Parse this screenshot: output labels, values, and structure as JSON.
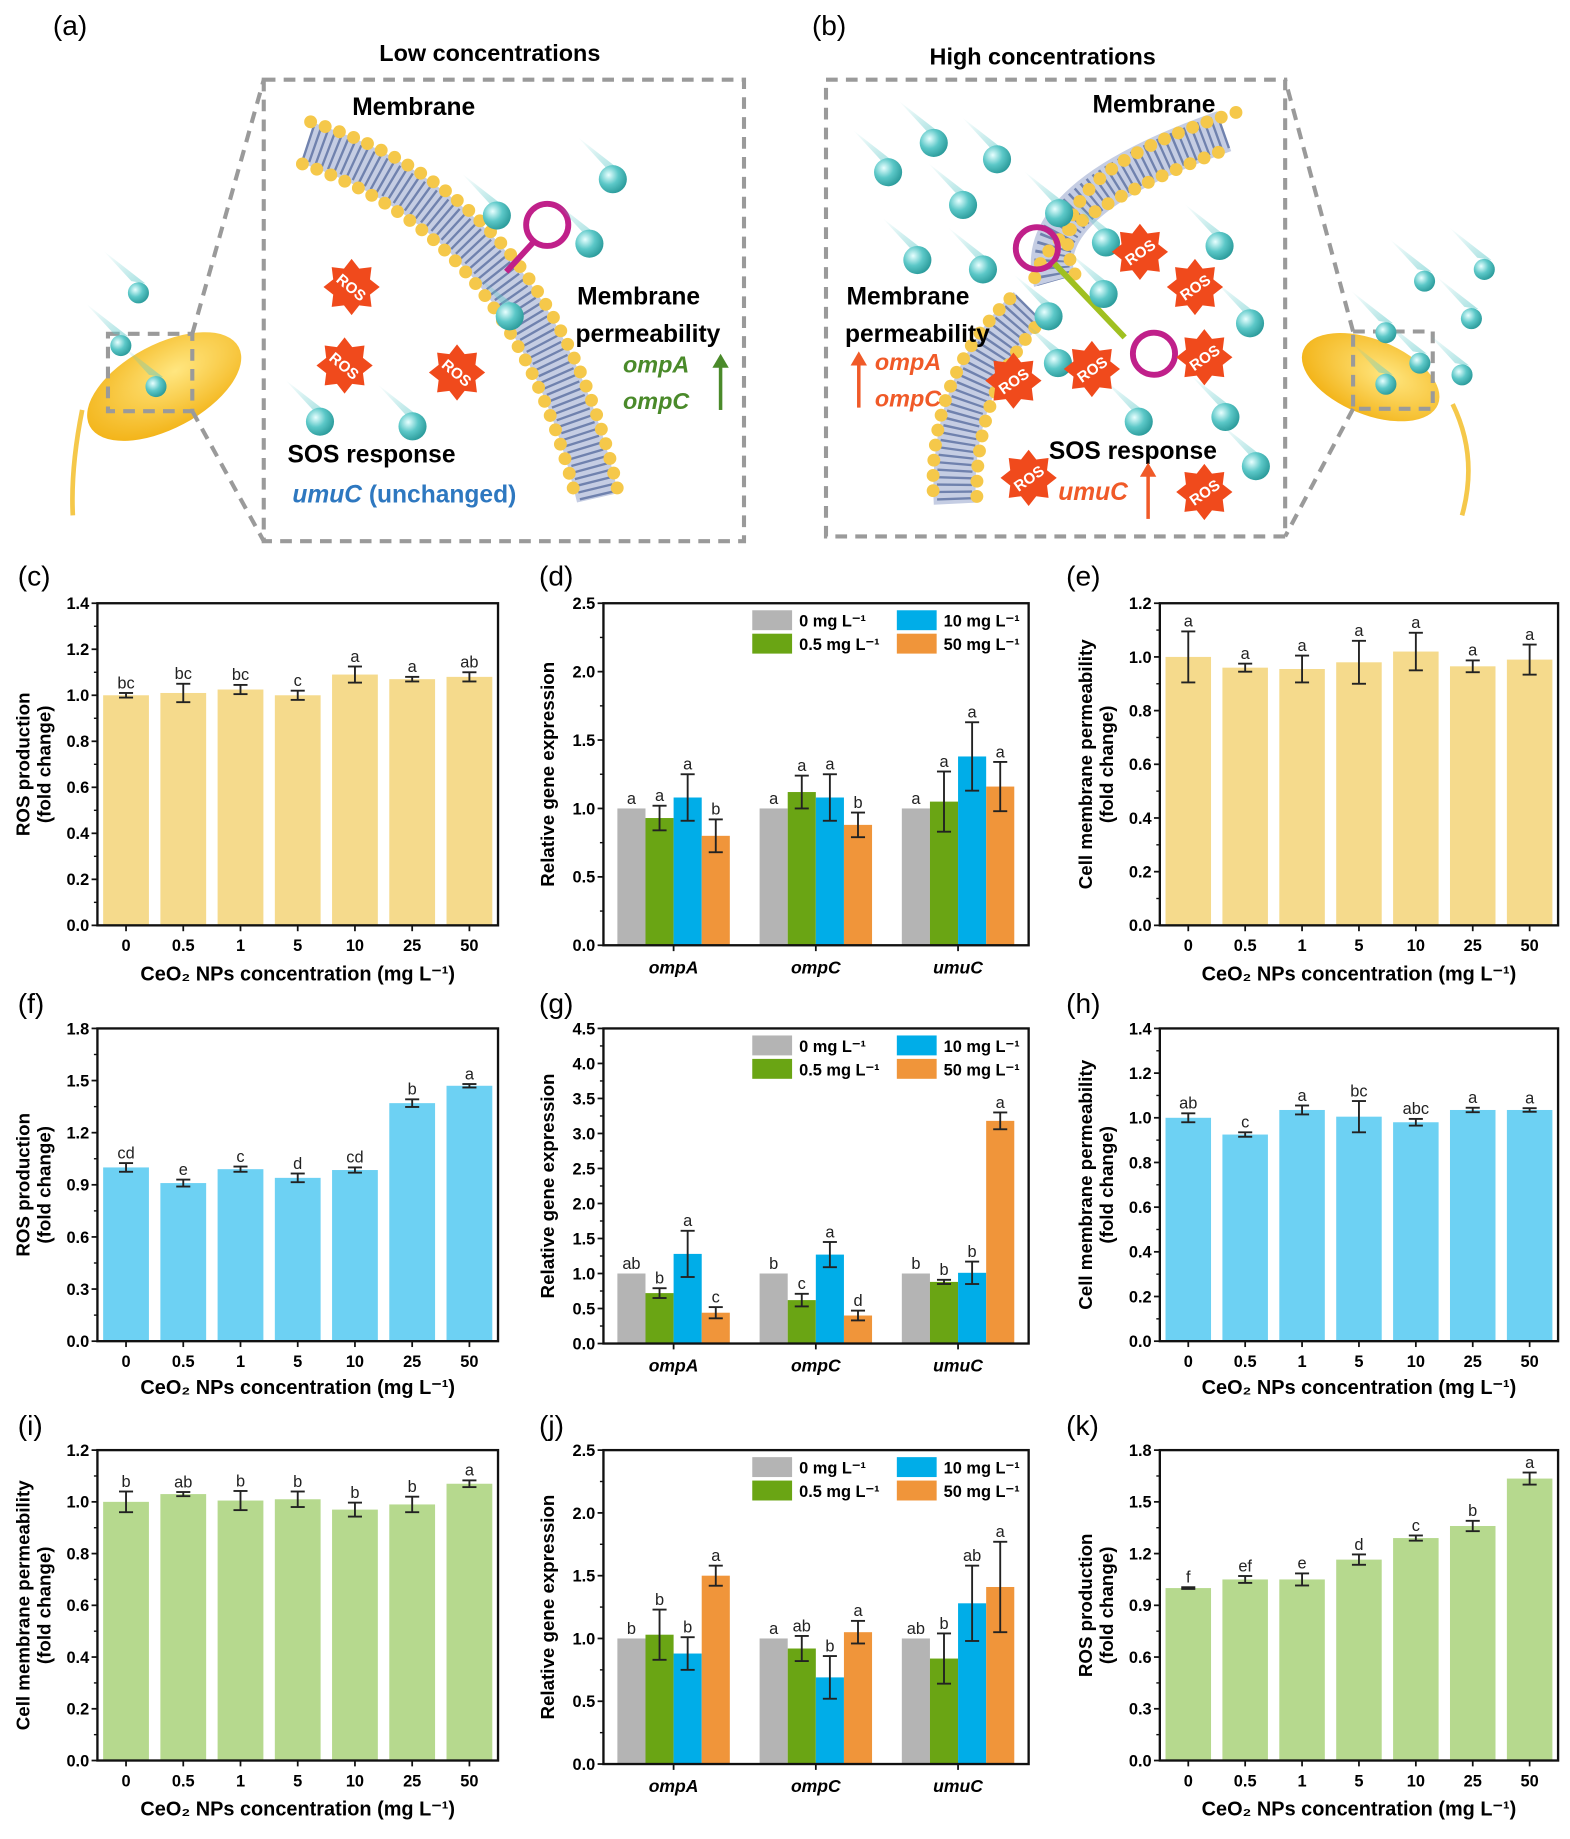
{
  "panel_labels": {
    "a": "(a)",
    "b": "(b)",
    "c": "(c)",
    "d": "(d)",
    "e": "(e)",
    "f": "(f)",
    "g": "(g)",
    "h": "(h)",
    "i": "(i)",
    "j": "(j)",
    "k": "(k)"
  },
  "schematic": {
    "ros_label": "ROS",
    "low": {
      "title": "Low concentrations",
      "membrane": "Membrane",
      "perm_line1": "Membrane",
      "perm_line2": "permeability",
      "gene1": "ompA",
      "gene2": "ompC",
      "sos": "SOS response",
      "umuc": "umuC",
      "umuc_note": "(unchanged)",
      "gene_color": "#4a8a2a",
      "umuc_color": "#2e78c0"
    },
    "high": {
      "title": "High concentrations",
      "membrane": "Membrane",
      "perm_line1": "Membrane",
      "perm_line2": "permeability",
      "gene1": "ompA",
      "gene2": "ompC",
      "sos": "SOS response",
      "umuc": "umuC",
      "gene_color": "#f05a28"
    },
    "colors": {
      "nanoparticle": "#5cc8c8",
      "ros": "#f04a1c",
      "membrane_head": "#f5c84a",
      "membrane_tail": "#5a6fa0",
      "plasmid": "#c0208a",
      "bacterium": "#f5b800"
    }
  },
  "chart_data": [
    {
      "panel": "c",
      "type": "bar",
      "ylabel": [
        "ROS production",
        "(fold change)"
      ],
      "xlabel": "CeO₂ NPs concentration (mg L⁻¹)",
      "ylim": [
        0,
        1.4
      ],
      "ytick_step": 0.2,
      "yticks": [
        "0.0",
        "0.2",
        "0.4",
        "0.6",
        "0.8",
        "1.0",
        "1.2",
        "1.4"
      ],
      "color": "#f5da8c",
      "categories": [
        "0",
        "0.5",
        "1",
        "5",
        "10",
        "25",
        "50"
      ],
      "values": [
        1.0,
        1.01,
        1.025,
        1.0,
        1.09,
        1.07,
        1.08
      ],
      "errors": [
        0.01,
        0.04,
        0.02,
        0.02,
        0.035,
        0.01,
        0.02
      ],
      "letters": [
        "bc",
        "bc",
        "bc",
        "c",
        "a",
        "a",
        "ab"
      ]
    },
    {
      "panel": "d",
      "type": "bar",
      "grouped": true,
      "ylabel": [
        "Relative gene expression"
      ],
      "ylim": [
        0,
        2.5
      ],
      "ytick_step": 0.5,
      "yticks": [
        "0.0",
        "0.5",
        "1.0",
        "1.5",
        "2.0",
        "2.5"
      ],
      "categories": [
        "ompA",
        "ompC",
        "umuC"
      ],
      "series": [
        {
          "name": "0 mg L⁻¹",
          "color": "#b4b4b4",
          "values": [
            1.0,
            1.0,
            1.0
          ],
          "errors": [
            0,
            0,
            0
          ],
          "letters": [
            "a",
            "a",
            "a"
          ]
        },
        {
          "name": "0.5 mg L⁻¹",
          "color": "#6aa514",
          "values": [
            0.93,
            1.12,
            1.05
          ],
          "errors": [
            0.09,
            0.12,
            0.22
          ],
          "letters": [
            "a",
            "a",
            "a"
          ]
        },
        {
          "name": "10 mg L⁻¹",
          "color": "#00ade8",
          "values": [
            1.08,
            1.08,
            1.38
          ],
          "errors": [
            0.17,
            0.17,
            0.25
          ],
          "letters": [
            "a",
            "a",
            "a"
          ]
        },
        {
          "name": "50 mg L⁻¹",
          "color": "#f0953a",
          "values": [
            0.8,
            0.88,
            1.16
          ],
          "errors": [
            0.12,
            0.09,
            0.18
          ],
          "letters": [
            "b",
            "b",
            "a"
          ]
        }
      ]
    },
    {
      "panel": "e",
      "type": "bar",
      "ylabel": [
        "Cell membrane permeability",
        "(fold change)"
      ],
      "xlabel": "CeO₂ NPs concentration (mg L⁻¹)",
      "ylim": [
        0,
        1.2
      ],
      "ytick_step": 0.2,
      "yticks": [
        "0.0",
        "0.2",
        "0.4",
        "0.6",
        "0.8",
        "1.0",
        "1.2"
      ],
      "color": "#f5da8c",
      "categories": [
        "0",
        "0.5",
        "1",
        "5",
        "10",
        "25",
        "50"
      ],
      "values": [
        1.0,
        0.96,
        0.955,
        0.98,
        1.02,
        0.965,
        0.99
      ],
      "errors": [
        0.095,
        0.015,
        0.05,
        0.08,
        0.07,
        0.022,
        0.056
      ],
      "letters": [
        "a",
        "a",
        "a",
        "a",
        "a",
        "a",
        "a"
      ]
    },
    {
      "panel": "f",
      "type": "bar",
      "ylabel": [
        "ROS production",
        "(fold change)"
      ],
      "xlabel": "CeO₂ NPs concentration (mg L⁻¹)",
      "ylim": [
        0,
        1.8
      ],
      "ytick_step": 0.3,
      "yticks": [
        "0.0",
        "0.3",
        "0.6",
        "0.9",
        "1.2",
        "1.5",
        "1.8"
      ],
      "color": "#6dd1f3",
      "categories": [
        "0",
        "0.5",
        "1",
        "5",
        "10",
        "25",
        "50"
      ],
      "values": [
        1.0,
        0.91,
        0.99,
        0.94,
        0.985,
        1.37,
        1.47
      ],
      "errors": [
        0.025,
        0.02,
        0.015,
        0.025,
        0.015,
        0.022,
        0.01
      ],
      "letters": [
        "cd",
        "e",
        "c",
        "d",
        "cd",
        "b",
        "a"
      ]
    },
    {
      "panel": "g",
      "type": "bar",
      "grouped": true,
      "ylabel": [
        "Relative gene expression"
      ],
      "ylim": [
        0,
        4.5
      ],
      "ytick_step": 0.5,
      "yticks": [
        "0.0",
        "0.5",
        "1.0",
        "1.5",
        "2.0",
        "2.5",
        "3.0",
        "3.5",
        "4.0",
        "4.5"
      ],
      "categories": [
        "ompA",
        "ompC",
        "umuC"
      ],
      "series": [
        {
          "name": "0 mg L⁻¹",
          "color": "#b4b4b4",
          "values": [
            1.0,
            1.0,
            1.0
          ],
          "errors": [
            0,
            0,
            0
          ],
          "letters": [
            "ab",
            "b",
            "b"
          ]
        },
        {
          "name": "0.5 mg L⁻¹",
          "color": "#6aa514",
          "values": [
            0.72,
            0.62,
            0.88
          ],
          "errors": [
            0.07,
            0.09,
            0.03
          ],
          "letters": [
            "b",
            "c",
            "b"
          ]
        },
        {
          "name": "10 mg L⁻¹",
          "color": "#00ade8",
          "values": [
            1.28,
            1.27,
            1.01
          ],
          "errors": [
            0.33,
            0.18,
            0.16
          ],
          "letters": [
            "a",
            "a",
            "b"
          ]
        },
        {
          "name": "50 mg L⁻¹",
          "color": "#f0953a",
          "values": [
            0.44,
            0.4,
            3.18
          ],
          "errors": [
            0.08,
            0.07,
            0.12
          ],
          "letters": [
            "c",
            "d",
            "a"
          ]
        }
      ]
    },
    {
      "panel": "h",
      "type": "bar",
      "ylabel": [
        "Cell membrane permeability",
        "(fold change)"
      ],
      "xlabel": "CeO₂ NPs concentration (mg L⁻¹)",
      "ylim": [
        0,
        1.4
      ],
      "ytick_step": 0.2,
      "yticks": [
        "0.0",
        "0.2",
        "0.4",
        "0.6",
        "0.8",
        "1.0",
        "1.2",
        "1.4"
      ],
      "color": "#6dd1f3",
      "categories": [
        "0",
        "0.5",
        "1",
        "5",
        "10",
        "25",
        "50"
      ],
      "values": [
        1.0,
        0.925,
        1.035,
        1.005,
        0.98,
        1.035,
        1.035
      ],
      "errors": [
        0.02,
        0.01,
        0.02,
        0.07,
        0.015,
        0.01,
        0.008
      ],
      "letters": [
        "ab",
        "c",
        "a",
        "bc",
        "abc",
        "a",
        "a"
      ]
    },
    {
      "panel": "i",
      "type": "bar",
      "ylabel": [
        "Cell membrane permeability",
        "(fold change)"
      ],
      "xlabel": "CeO₂ NPs concentration (mg L⁻¹)",
      "ylim": [
        0,
        1.2
      ],
      "ytick_step": 0.2,
      "yticks": [
        "0.0",
        "0.2",
        "0.4",
        "0.6",
        "0.8",
        "1.0",
        "1.2"
      ],
      "color": "#b6d98e",
      "categories": [
        "0",
        "0.5",
        "1",
        "5",
        "10",
        "25",
        "50"
      ],
      "values": [
        1.0,
        1.03,
        1.005,
        1.01,
        0.97,
        0.99,
        1.07
      ],
      "errors": [
        0.04,
        0.008,
        0.037,
        0.03,
        0.027,
        0.03,
        0.013
      ],
      "letters": [
        "b",
        "ab",
        "b",
        "b",
        "b",
        "b",
        "a"
      ]
    },
    {
      "panel": "j",
      "type": "bar",
      "grouped": true,
      "ylabel": [
        "Relative gene expression"
      ],
      "ylim": [
        0,
        2.5
      ],
      "ytick_step": 0.5,
      "yticks": [
        "0.0",
        "0.5",
        "1.0",
        "1.5",
        "2.0",
        "2.5"
      ],
      "categories": [
        "ompA",
        "ompC",
        "umuC"
      ],
      "series": [
        {
          "name": "0 mg L⁻¹",
          "color": "#b4b4b4",
          "values": [
            1.0,
            1.0,
            1.0
          ],
          "errors": [
            0,
            0,
            0
          ],
          "letters": [
            "b",
            "a",
            "ab"
          ]
        },
        {
          "name": "0.5 mg L⁻¹",
          "color": "#6aa514",
          "values": [
            1.03,
            0.92,
            0.84
          ],
          "errors": [
            0.2,
            0.1,
            0.2
          ],
          "letters": [
            "b",
            "ab",
            "b"
          ]
        },
        {
          "name": "10 mg L⁻¹",
          "color": "#00ade8",
          "values": [
            0.88,
            0.69,
            1.28
          ],
          "errors": [
            0.13,
            0.17,
            0.3
          ],
          "letters": [
            "b",
            "b",
            "ab"
          ]
        },
        {
          "name": "50 mg L⁻¹",
          "color": "#f0953a",
          "values": [
            1.5,
            1.05,
            1.41
          ],
          "errors": [
            0.08,
            0.09,
            0.36
          ],
          "letters": [
            "a",
            "a",
            "a"
          ]
        }
      ]
    },
    {
      "panel": "k",
      "type": "bar",
      "ylabel": [
        "ROS production",
        "(fold change)"
      ],
      "xlabel": "CeO₂ NPs concentration (mg L⁻¹)",
      "ylim": [
        0,
        1.8
      ],
      "ytick_step": 0.3,
      "yticks": [
        "0.0",
        "0.3",
        "0.6",
        "0.9",
        "1.2",
        "1.5",
        "1.8"
      ],
      "color": "#b6d98e",
      "categories": [
        "0",
        "0.5",
        "1",
        "5",
        "10",
        "25",
        "50"
      ],
      "values": [
        1.0,
        1.05,
        1.05,
        1.165,
        1.29,
        1.36,
        1.635
      ],
      "errors": [
        0.005,
        0.02,
        0.035,
        0.03,
        0.015,
        0.03,
        0.035
      ],
      "letters": [
        "f",
        "ef",
        "e",
        "d",
        "c",
        "b",
        "a"
      ]
    }
  ]
}
